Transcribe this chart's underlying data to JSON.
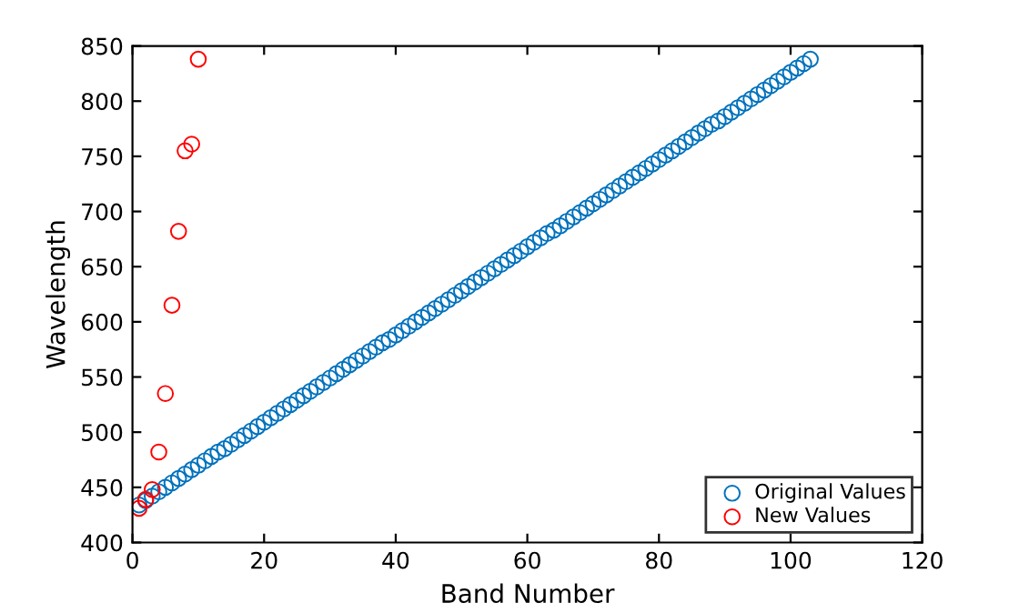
{
  "chart_data": {
    "type": "scatter",
    "xlabel": "Band Number",
    "ylabel": "Wavelength",
    "xlim": [
      0,
      120
    ],
    "xticks": [
      0,
      20,
      40,
      60,
      80,
      100,
      120
    ],
    "ylim": [
      400,
      850
    ],
    "yticks": [
      400,
      450,
      500,
      550,
      600,
      650,
      700,
      750,
      800,
      850
    ],
    "marker": "circle",
    "legend": "bottom right",
    "grid": false,
    "series": [
      {
        "name": "Original Values",
        "color": "#0072bd",
        "x": [
          1,
          2,
          3,
          4,
          5,
          6,
          7,
          8,
          9,
          10,
          11,
          12,
          13,
          14,
          15,
          16,
          17,
          18,
          19,
          20,
          21,
          22,
          23,
          24,
          25,
          26,
          27,
          28,
          29,
          30,
          31,
          32,
          33,
          34,
          35,
          36,
          37,
          38,
          39,
          40,
          41,
          42,
          43,
          44,
          45,
          46,
          47,
          48,
          49,
          50,
          51,
          52,
          53,
          54,
          55,
          56,
          57,
          58,
          59,
          60,
          61,
          62,
          63,
          64,
          65,
          66,
          67,
          68,
          69,
          70,
          71,
          72,
          73,
          74,
          75,
          76,
          77,
          78,
          79,
          80,
          81,
          82,
          83,
          84,
          85,
          86,
          87,
          88,
          89,
          90,
          91,
          92,
          93,
          94,
          95,
          96,
          97,
          98,
          99,
          100,
          101,
          102,
          103
        ],
        "values": [
          434,
          438,
          442,
          446,
          450,
          454,
          458,
          462,
          466,
          470,
          474,
          478,
          482,
          485,
          489,
          493,
          497,
          501,
          505,
          509,
          513,
          517,
          521,
          525,
          529,
          533,
          537,
          541,
          545,
          549,
          553,
          557,
          561,
          565,
          569,
          573,
          577,
          581,
          584,
          588,
          592,
          596,
          600,
          604,
          608,
          612,
          616,
          620,
          624,
          628,
          632,
          636,
          640,
          644,
          648,
          652,
          656,
          660,
          664,
          668,
          672,
          676,
          680,
          683,
          687,
          691,
          695,
          699,
          703,
          707,
          711,
          715,
          719,
          723,
          727,
          731,
          735,
          739,
          743,
          747,
          751,
          755,
          759,
          763,
          767,
          771,
          775,
          779,
          782,
          786,
          790,
          794,
          798,
          802,
          806,
          810,
          814,
          818,
          822,
          826,
          830,
          834,
          838
        ]
      },
      {
        "name": "New Values",
        "color": "#ff0000",
        "x": [
          1,
          2,
          3,
          4,
          5,
          6,
          7,
          8,
          9,
          10
        ],
        "values": [
          431,
          439,
          448,
          482,
          535,
          615,
          682,
          755,
          761,
          838
        ]
      }
    ]
  }
}
